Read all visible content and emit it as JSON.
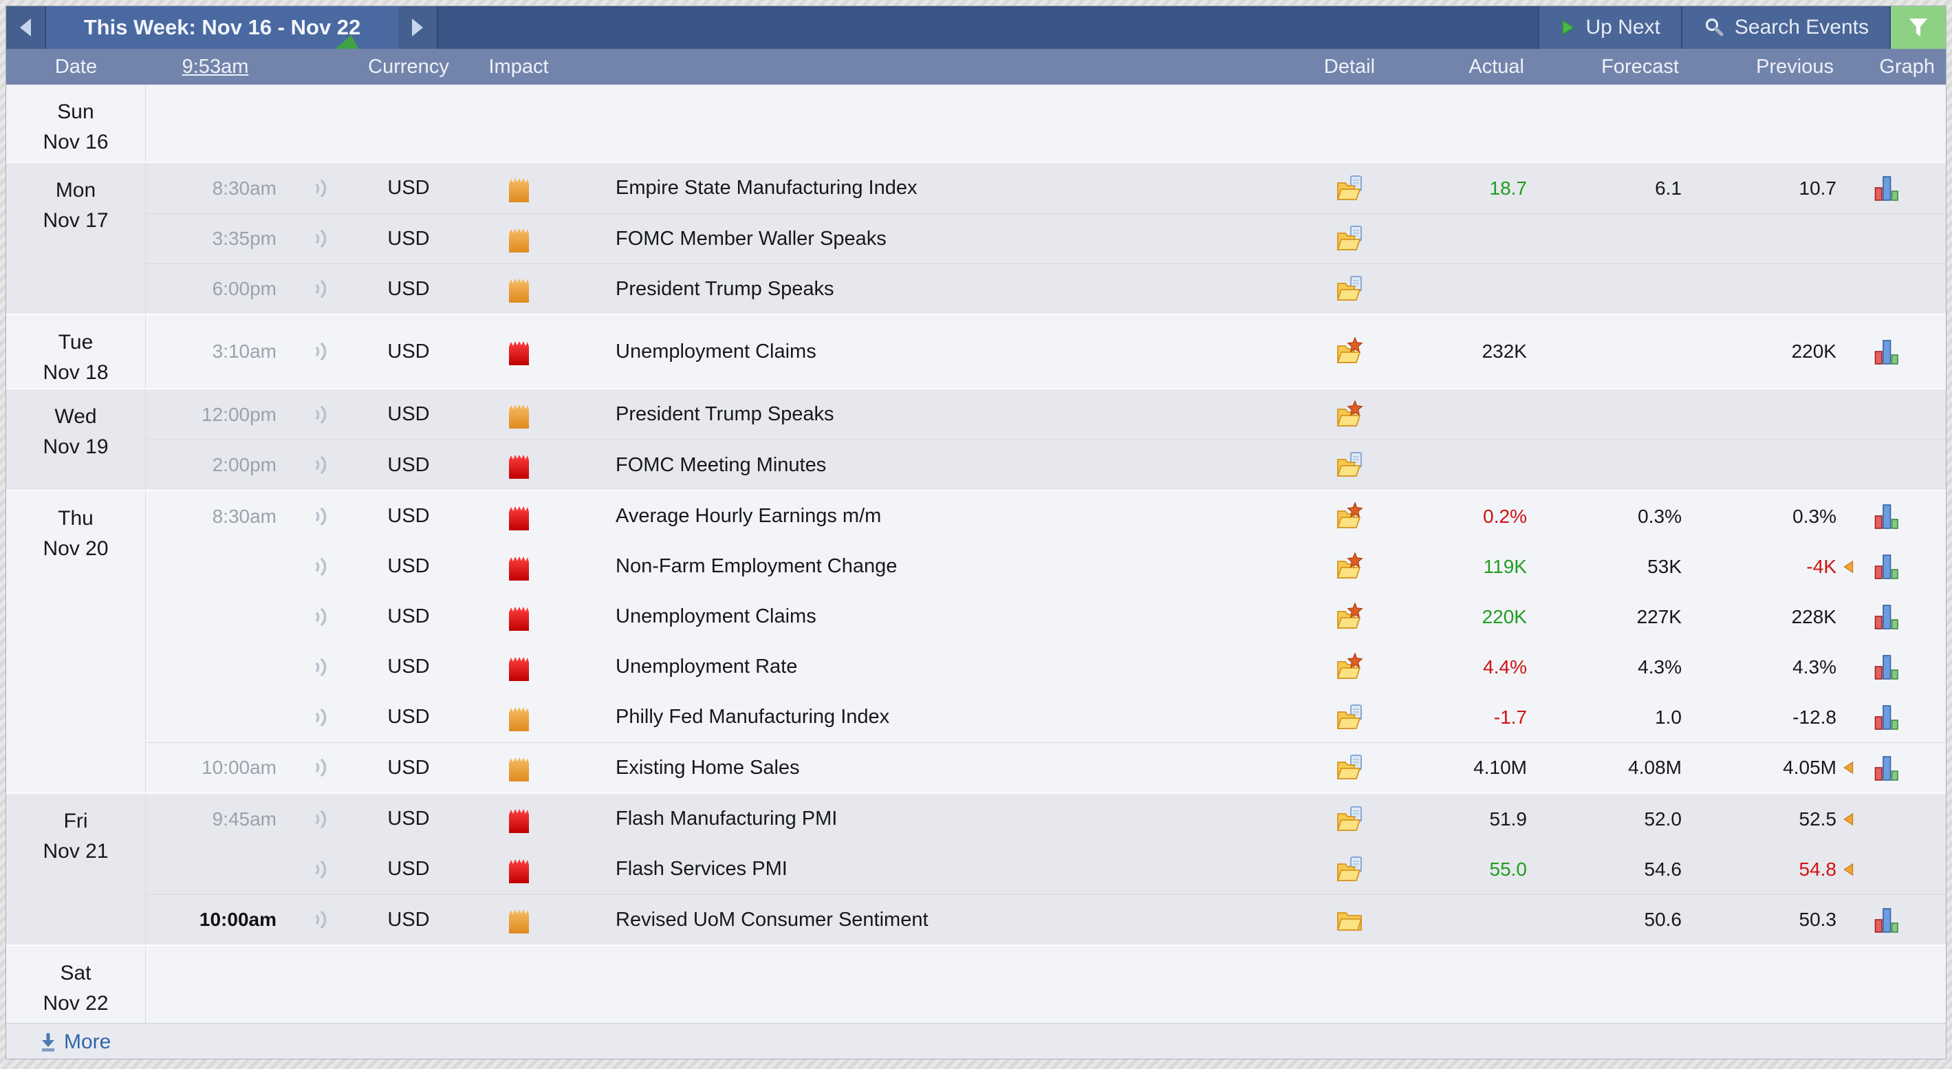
{
  "toolbar": {
    "week_label": "This Week: Nov 16 - Nov 22",
    "up_next_label": "Up Next",
    "search_label": "Search Events",
    "prev_icon": "chevron-left",
    "next_icon": "chevron-right",
    "filter_icon": "funnel"
  },
  "header": {
    "date": "Date",
    "current_time": "9:53am",
    "currency": "Currency",
    "impact": "Impact",
    "detail": "Detail",
    "actual": "Actual",
    "forecast": "Forecast",
    "previous": "Previous",
    "graph": "Graph"
  },
  "footer": {
    "more_label": "More"
  },
  "colors": {
    "topbar_bg": "#3a5486",
    "tab_bg": "#4a69a1",
    "tab_fold_green": "#3fa244",
    "header_bg": "#7384ac",
    "filter_green": "#8fd184",
    "block_light": "#f3f4f8",
    "block_dark": "#e7e8ed",
    "impact_red": "#e01414",
    "impact_orange": "#efa23a",
    "value_better": "#1f9e1f",
    "value_worse": "#cf1212",
    "time_gray": "#9aa2ac",
    "more_link": "#2f66ad"
  },
  "days": [
    {
      "day": "Sun",
      "date": "Nov 16",
      "shade": "light",
      "events": []
    },
    {
      "day": "Mon",
      "date": "Nov 17",
      "shade": "dark",
      "events": [
        {
          "time": "8:30am",
          "currency": "USD",
          "impact": "orange",
          "name": "Empire State Manufacturing Index",
          "detail": "folder-paper",
          "actual": "18.7",
          "actual_tone": "up",
          "forecast": "6.1",
          "previous": "10.7",
          "previous_tone": "",
          "previous_revised": false,
          "graph": true,
          "sep": false,
          "time_upnext": false
        },
        {
          "time": "3:35pm",
          "currency": "USD",
          "impact": "orange",
          "name": "FOMC Member Waller Speaks",
          "detail": "folder-paper",
          "actual": "",
          "actual_tone": "",
          "forecast": "",
          "previous": "",
          "previous_tone": "",
          "previous_revised": false,
          "graph": false,
          "sep": true,
          "time_upnext": false
        },
        {
          "time": "6:00pm",
          "currency": "USD",
          "impact": "orange",
          "name": "President Trump Speaks",
          "detail": "folder-paper",
          "actual": "",
          "actual_tone": "",
          "forecast": "",
          "previous": "",
          "previous_tone": "",
          "previous_revised": false,
          "graph": false,
          "sep": true,
          "time_upnext": false
        }
      ]
    },
    {
      "day": "Tue",
      "date": "Nov 18",
      "shade": "light",
      "events": [
        {
          "time": "3:10am",
          "currency": "USD",
          "impact": "red",
          "name": "Unemployment Claims",
          "detail": "folder-star",
          "actual": "232K",
          "actual_tone": "",
          "forecast": "",
          "previous": "220K",
          "previous_tone": "",
          "previous_revised": false,
          "graph": true,
          "sep": false,
          "time_upnext": false
        }
      ]
    },
    {
      "day": "Wed",
      "date": "Nov 19",
      "shade": "dark",
      "events": [
        {
          "time": "12:00pm",
          "currency": "USD",
          "impact": "orange",
          "name": "President Trump Speaks",
          "detail": "folder-star",
          "actual": "",
          "actual_tone": "",
          "forecast": "",
          "previous": "",
          "previous_tone": "",
          "previous_revised": false,
          "graph": false,
          "sep": false,
          "time_upnext": false
        },
        {
          "time": "2:00pm",
          "currency": "USD",
          "impact": "red",
          "name": "FOMC Meeting Minutes",
          "detail": "folder-paper",
          "actual": "",
          "actual_tone": "",
          "forecast": "",
          "previous": "",
          "previous_tone": "",
          "previous_revised": false,
          "graph": false,
          "sep": true,
          "time_upnext": false
        }
      ]
    },
    {
      "day": "Thu",
      "date": "Nov 20",
      "shade": "light",
      "events": [
        {
          "time": "8:30am",
          "currency": "USD",
          "impact": "red",
          "name": "Average Hourly Earnings m/m",
          "detail": "folder-star",
          "actual": "0.2%",
          "actual_tone": "down",
          "forecast": "0.3%",
          "previous": "0.3%",
          "previous_tone": "",
          "previous_revised": false,
          "graph": true,
          "sep": false,
          "time_upnext": false
        },
        {
          "time": "",
          "currency": "USD",
          "impact": "red",
          "name": "Non-Farm Employment Change",
          "detail": "folder-star",
          "actual": "119K",
          "actual_tone": "up",
          "forecast": "53K",
          "previous": "-4K",
          "previous_tone": "down",
          "previous_revised": true,
          "graph": true,
          "sep": false,
          "time_upnext": false
        },
        {
          "time": "",
          "currency": "USD",
          "impact": "red",
          "name": "Unemployment Claims",
          "detail": "folder-star",
          "actual": "220K",
          "actual_tone": "up",
          "forecast": "227K",
          "previous": "228K",
          "previous_tone": "",
          "previous_revised": false,
          "graph": true,
          "sep": false,
          "time_upnext": false
        },
        {
          "time": "",
          "currency": "USD",
          "impact": "red",
          "name": "Unemployment Rate",
          "detail": "folder-star",
          "actual": "4.4%",
          "actual_tone": "down",
          "forecast": "4.3%",
          "previous": "4.3%",
          "previous_tone": "",
          "previous_revised": false,
          "graph": true,
          "sep": false,
          "time_upnext": false
        },
        {
          "time": "",
          "currency": "USD",
          "impact": "orange",
          "name": "Philly Fed Manufacturing Index",
          "detail": "folder-paper",
          "actual": "-1.7",
          "actual_tone": "down",
          "forecast": "1.0",
          "previous": "-12.8",
          "previous_tone": "",
          "previous_revised": false,
          "graph": true,
          "sep": false,
          "time_upnext": false
        },
        {
          "time": "10:00am",
          "currency": "USD",
          "impact": "orange",
          "name": "Existing Home Sales",
          "detail": "folder-paper",
          "actual": "4.10M",
          "actual_tone": "",
          "forecast": "4.08M",
          "previous": "4.05M",
          "previous_tone": "",
          "previous_revised": true,
          "graph": true,
          "sep": true,
          "time_upnext": false
        }
      ]
    },
    {
      "day": "Fri",
      "date": "Nov 21",
      "shade": "dark",
      "events": [
        {
          "time": "9:45am",
          "currency": "USD",
          "impact": "red",
          "name": "Flash Manufacturing PMI",
          "detail": "folder-paper",
          "actual": "51.9",
          "actual_tone": "",
          "forecast": "52.0",
          "previous": "52.5",
          "previous_tone": "",
          "previous_revised": true,
          "graph": false,
          "sep": false,
          "time_upnext": false
        },
        {
          "time": "",
          "currency": "USD",
          "impact": "red",
          "name": "Flash Services PMI",
          "detail": "folder-paper",
          "actual": "55.0",
          "actual_tone": "up",
          "forecast": "54.6",
          "previous": "54.8",
          "previous_tone": "down",
          "previous_revised": true,
          "graph": false,
          "sep": false,
          "time_upnext": false
        },
        {
          "time": "10:00am",
          "currency": "USD",
          "impact": "orange",
          "name": "Revised UoM Consumer Sentiment",
          "detail": "folder-plain",
          "actual": "",
          "actual_tone": "",
          "forecast": "50.6",
          "previous": "50.3",
          "previous_tone": "",
          "previous_revised": false,
          "graph": true,
          "sep": true,
          "time_upnext": true
        }
      ]
    },
    {
      "day": "Sat",
      "date": "Nov 22",
      "shade": "light",
      "events": []
    }
  ]
}
